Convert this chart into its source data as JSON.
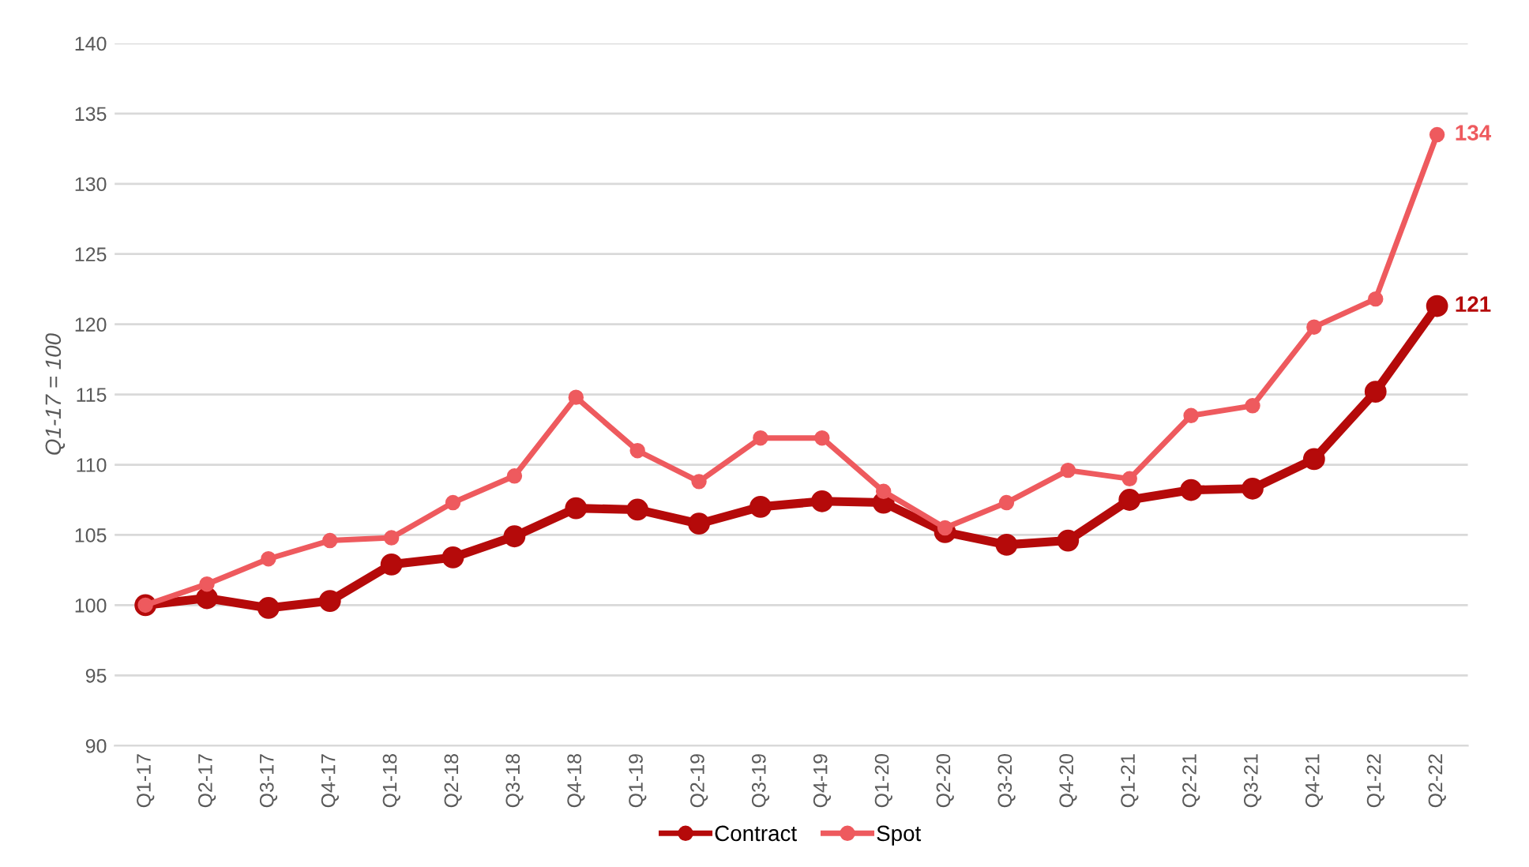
{
  "chart_data": {
    "type": "line",
    "ylabel": "Q1-17 = 100",
    "categories": [
      "Q1-17",
      "Q2-17",
      "Q3-17",
      "Q4-17",
      "Q1-18",
      "Q2-18",
      "Q3-18",
      "Q4-18",
      "Q1-19",
      "Q2-19",
      "Q3-19",
      "Q4-19",
      "Q1-20",
      "Q2-20",
      "Q3-20",
      "Q4-20",
      "Q1-21",
      "Q2-21",
      "Q3-21",
      "Q4-21",
      "Q1-22",
      "Q2-22"
    ],
    "series": [
      {
        "name": "Contract",
        "color": "#b50a0a",
        "values": [
          100,
          100.5,
          99.8,
          100.3,
          102.9,
          103.4,
          104.9,
          106.9,
          106.8,
          105.8,
          107.0,
          107.4,
          107.3,
          105.2,
          104.3,
          104.6,
          107.5,
          108.2,
          108.3,
          110.4,
          115.2,
          121.3
        ],
        "value_labels": [
          null,
          null,
          null,
          null,
          null,
          null,
          null,
          null,
          null,
          null,
          null,
          null,
          null,
          null,
          null,
          null,
          null,
          null,
          null,
          null,
          null,
          "121"
        ]
      },
      {
        "name": "Spot",
        "color": "#ee5a5e",
        "values": [
          100,
          101.5,
          103.3,
          104.6,
          104.8,
          107.3,
          109.2,
          114.8,
          111.0,
          108.8,
          111.9,
          111.9,
          108.1,
          105.5,
          107.3,
          109.6,
          109.0,
          113.5,
          114.2,
          119.8,
          121.8,
          133.5
        ],
        "value_labels": [
          null,
          null,
          null,
          null,
          null,
          null,
          null,
          null,
          null,
          null,
          null,
          null,
          null,
          null,
          null,
          null,
          null,
          null,
          null,
          null,
          null,
          "134"
        ]
      }
    ],
    "ylim": [
      90,
      140
    ],
    "yticks": [
      90,
      95,
      100,
      105,
      110,
      115,
      120,
      125,
      130,
      135,
      140
    ],
    "grid": "y",
    "legend": "bottom",
    "marker": "circle",
    "line_style": "solid"
  }
}
